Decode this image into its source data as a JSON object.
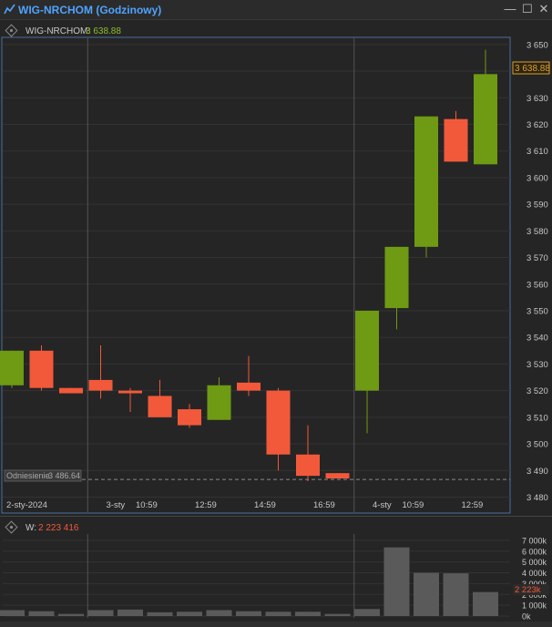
{
  "window": {
    "title": "WIG-NRCHOM (Godzinowy)"
  },
  "colors": {
    "up": "#6e9a14",
    "down": "#f2593a",
    "volume": "#5a5a5a",
    "title": "#4fa3ff",
    "price_label": "#e0b020"
  },
  "price_panel": {
    "instrument": "WIG-NRCHOM:",
    "last": "3 638.88",
    "reference_label": "Odniesienie",
    "reference_value": "3 486.64"
  },
  "volume_panel": {
    "label": "W:",
    "value": "2 223 416",
    "current_label": "2 223k"
  },
  "chart_data": {
    "type": "candlestick",
    "reference": 3486.64,
    "ylim": [
      3474,
      3652
    ],
    "yticks": [
      3480,
      3490,
      3500,
      3510,
      3520,
      3530,
      3540,
      3550,
      3560,
      3570,
      3580,
      3590,
      3600,
      3610,
      3620,
      3630,
      3640,
      3650
    ],
    "ytick_labels": [
      "3 480",
      "3 490",
      "3 500",
      "3 510",
      "3 520",
      "3 530",
      "3 540",
      "3 550",
      "3 560",
      "3 570",
      "3 580",
      "3 590",
      "3 600",
      "3 610",
      "3 620",
      "3 630",
      "3 640",
      "3 650"
    ],
    "xlabels": [
      {
        "index": 1,
        "text": "2-sty-2024"
      },
      {
        "index": 3.5,
        "text": "3-sty"
      },
      {
        "index": 4.5,
        "text": "10:59"
      },
      {
        "index": 6.5,
        "text": "12:59"
      },
      {
        "index": 8.5,
        "text": "14:59"
      },
      {
        "index": 10.5,
        "text": "16:59"
      },
      {
        "index": 12.5,
        "text": "4-sty"
      },
      {
        "index": 13.5,
        "text": "10:59"
      },
      {
        "index": 15.5,
        "text": "12:59"
      }
    ],
    "day_separators": [
      3,
      12
    ],
    "candles": [
      {
        "o": 3522,
        "h": 3535,
        "l": 3521,
        "c": 3535
      },
      {
        "o": 3535,
        "h": 3537,
        "l": 3520,
        "c": 3521
      },
      {
        "o": 3521,
        "h": 3521,
        "l": 3519,
        "c": 3519
      },
      {
        "o": 3524,
        "h": 3537,
        "l": 3517,
        "c": 3520
      },
      {
        "o": 3520,
        "h": 3521,
        "l": 3512,
        "c": 3519
      },
      {
        "o": 3518,
        "h": 3524,
        "l": 3510,
        "c": 3510
      },
      {
        "o": 3513,
        "h": 3515,
        "l": 3506,
        "c": 3507
      },
      {
        "o": 3509,
        "h": 3525,
        "l": 3509,
        "c": 3522
      },
      {
        "o": 3523,
        "h": 3533,
        "l": 3518,
        "c": 3520
      },
      {
        "o": 3520,
        "h": 3521,
        "l": 3490,
        "c": 3496
      },
      {
        "o": 3496,
        "h": 3507,
        "l": 3486,
        "c": 3488
      },
      {
        "o": 3489,
        "h": 3489,
        "l": 3487,
        "c": 3487
      },
      {
        "o": 3520,
        "h": 3550,
        "l": 3504,
        "c": 3550
      },
      {
        "o": 3551,
        "h": 3574,
        "l": 3543,
        "c": 3574
      },
      {
        "o": 3574,
        "h": 3623,
        "l": 3570,
        "c": 3623
      },
      {
        "o": 3622,
        "h": 3625,
        "l": 3606,
        "c": 3606
      },
      {
        "o": 3605,
        "h": 3648,
        "l": 3605,
        "c": 3638.88
      }
    ],
    "volume": {
      "ylim": [
        0,
        7500
      ],
      "yticks": [
        0,
        1000,
        2000,
        3000,
        4000,
        5000,
        6000,
        7000
      ],
      "ytick_labels": [
        "0k",
        "1 000k",
        "2 000k",
        "3 000k",
        "4 000k",
        "5 000k",
        "6 000k",
        "7 000k"
      ],
      "values": [
        550,
        450,
        200,
        550,
        600,
        350,
        400,
        550,
        450,
        400,
        400,
        200,
        650,
        6350,
        4000,
        3950,
        2223
      ]
    }
  }
}
